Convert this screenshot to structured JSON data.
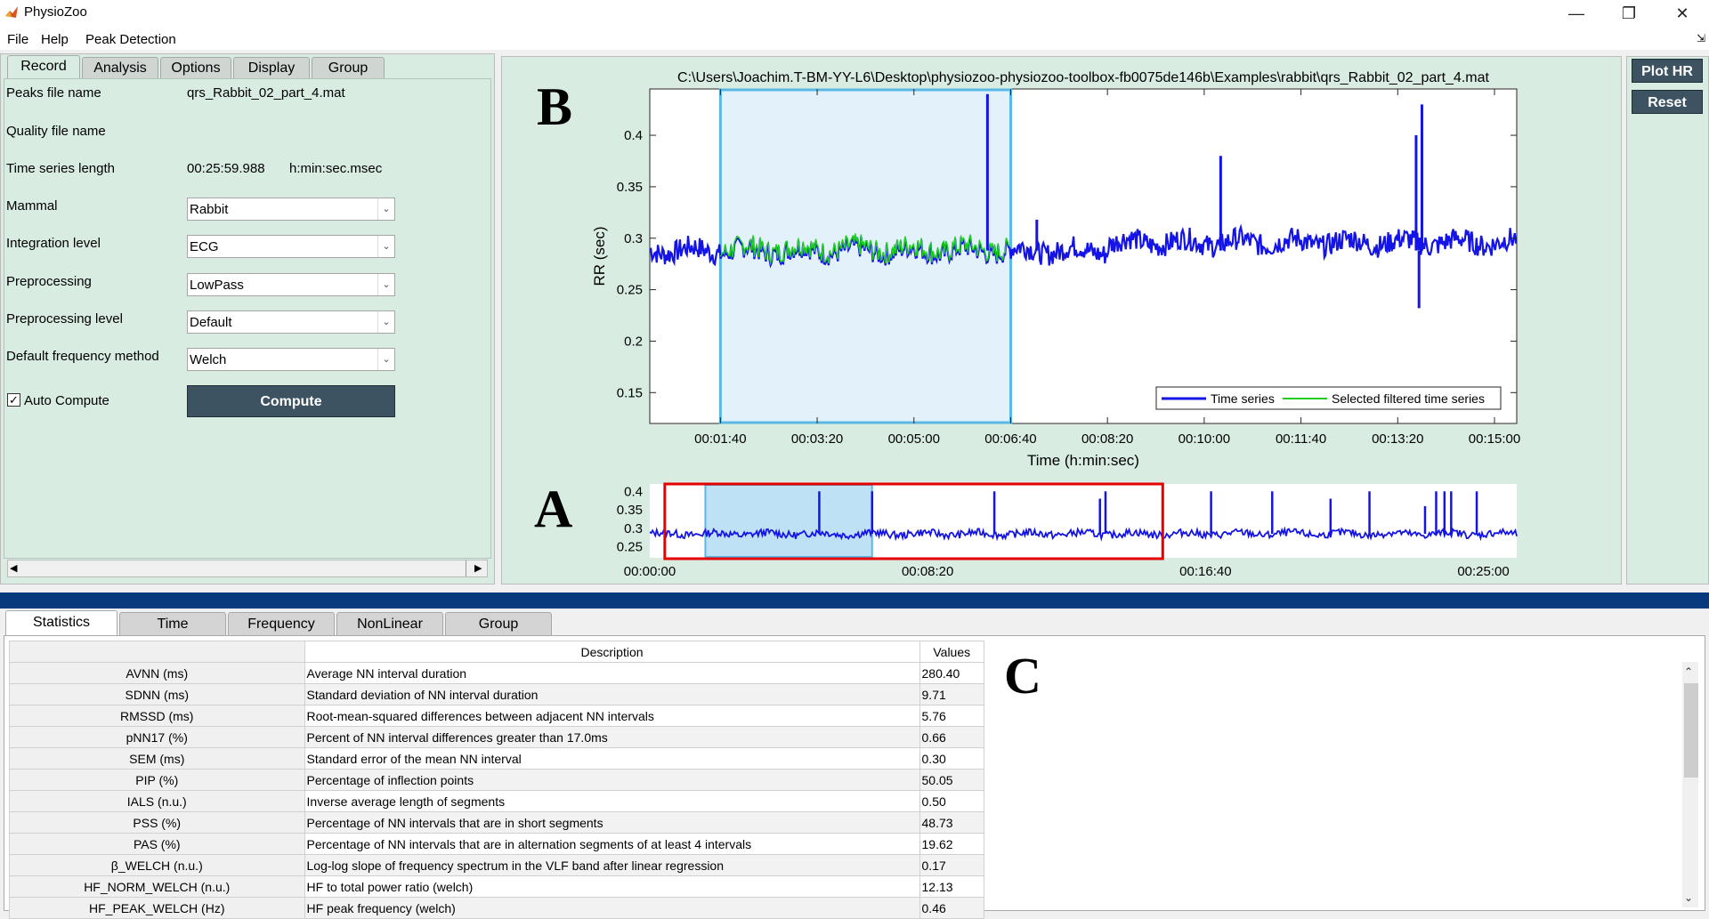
{
  "window": {
    "title": "PhysioZoo",
    "menu": [
      "File",
      "Help",
      "Peak Detection"
    ]
  },
  "left_tabs": [
    "Record",
    "Analysis",
    "Options",
    "Display",
    "Group"
  ],
  "record": {
    "rows": [
      {
        "label": "Peaks file name",
        "value": "qrs_Rabbit_02_part_4.mat"
      },
      {
        "label": "Quality file name",
        "value": ""
      },
      {
        "label": "Time series length",
        "value": "00:25:59.988",
        "unit": "h:min:sec.msec"
      }
    ],
    "combos": [
      {
        "label": "Mammal",
        "value": "Rabbit"
      },
      {
        "label": "Integration level",
        "value": "ECG"
      },
      {
        "label": "Preprocessing",
        "value": "LowPass"
      },
      {
        "label": "Preprocessing level",
        "value": "Default"
      },
      {
        "label": "Default frequency method",
        "value": "Welch"
      }
    ],
    "auto_compute_label": "Auto Compute",
    "auto_compute_checked": true,
    "compute_label": "Compute"
  },
  "side_buttons": {
    "plot_hr": "Plot HR",
    "reset": "Reset"
  },
  "panel_letters": {
    "a": "A",
    "b": "B",
    "c": "C"
  },
  "bottom_tabs": [
    "Statistics",
    "Time",
    "Frequency",
    "NonLinear",
    "Group"
  ],
  "stats": {
    "headers": {
      "description": "Description",
      "values": "Values"
    },
    "rows": [
      {
        "name": "AVNN (ms)",
        "description": "Average NN interval duration",
        "value": "280.40"
      },
      {
        "name": "SDNN (ms)",
        "description": "Standard deviation of NN interval duration",
        "value": "9.71"
      },
      {
        "name": "RMSSD (ms)",
        "description": "Root-mean-squared differences between adjacent NN intervals",
        "value": "5.76"
      },
      {
        "name": "pNN17 (%)",
        "description": "Percent of NN interval differences greater than 17.0ms",
        "value": "0.66"
      },
      {
        "name": "SEM (ms)",
        "description": "Standard error of the mean NN interval",
        "value": "0.30"
      },
      {
        "name": "PIP (%)",
        "description": "Percentage of inflection points",
        "value": "50.05"
      },
      {
        "name": "IALS (n.u.)",
        "description": "Inverse average length of segments",
        "value": "0.50"
      },
      {
        "name": "PSS (%)",
        "description": "Percentage of NN intervals that are in short segments",
        "value": "48.73"
      },
      {
        "name": "PAS (%)",
        "description": "Percentage of NN intervals that are in alternation segments of at least 4 intervals",
        "value": "19.62"
      },
      {
        "name": "β_WELCH (n.u.)",
        "description": "Log-log slope of frequency spectrum in the VLF band after linear regression",
        "value": "0.17"
      },
      {
        "name": "HF_NORM_WELCH (n.u.)",
        "description": "HF to total power ratio (welch)",
        "value": "12.13"
      },
      {
        "name": "HF_PEAK_WELCH (Hz)",
        "description": "HF peak frequency (welch)",
        "value": "0.46"
      }
    ]
  },
  "chart_data": [
    {
      "type": "line",
      "title": "C:\\Users\\Joachim.T-BM-YY-L6\\Desktop\\physiozoo-physiozoo-toolbox-fb0075de146b\\Examples\\rabbit\\qrs_Rabbit_02_part_4.mat",
      "xlabel": "Time (h:min:sec)",
      "ylabel": "RR (sec)",
      "xticks": [
        "00:01:40",
        "00:03:20",
        "00:05:00",
        "00:06:40",
        "00:08:20",
        "00:10:00",
        "00:11:40",
        "00:13:20",
        "00:15:00"
      ],
      "xticks_sec": [
        100,
        200,
        300,
        400,
        500,
        600,
        700,
        800,
        900
      ],
      "xlim_sec": [
        27,
        923
      ],
      "yticks": [
        0.15,
        0.2,
        0.25,
        0.3,
        0.35,
        0.4
      ],
      "ylim": [
        0.12,
        0.445
      ],
      "selection_window_sec": [
        100,
        400
      ],
      "legend": [
        "Time series",
        "Selected filtered time series"
      ],
      "legend_position": "bottom-right",
      "series_colors": {
        "time_series": "#1414e6",
        "filtered": "#20d020",
        "selection": "#5ab8e6"
      },
      "baseline": 0.288,
      "spikes_sec": [
        [
          376,
          0.44
        ],
        [
          427,
          0.318
        ],
        [
          617,
          0.38
        ],
        [
          819,
          0.4
        ],
        [
          825,
          0.43
        ],
        [
          822,
          0.232
        ]
      ]
    },
    {
      "type": "line",
      "xticks": [
        "00:00:00",
        "00:08:20",
        "00:16:40",
        "00:25:00"
      ],
      "xticks_sec": [
        0,
        500,
        1000,
        1500
      ],
      "xlim_sec": [
        0,
        1560
      ],
      "yticks": [
        0.25,
        0.3,
        0.35,
        0.4
      ],
      "ylim": [
        0.22,
        0.42
      ],
      "zoom_window_sec": [
        27,
        923
      ],
      "selection_window_sec": [
        100,
        400
      ],
      "series_color": "#1414e6",
      "zoom_color": "#e60000",
      "baseline": 0.285,
      "spikes_sec": [
        [
          305,
          0.4
        ],
        [
          400,
          0.4
        ],
        [
          620,
          0.4
        ],
        [
          810,
          0.38
        ],
        [
          820,
          0.4
        ],
        [
          1010,
          0.4
        ],
        [
          1120,
          0.4
        ],
        [
          1225,
          0.38
        ],
        [
          1295,
          0.4
        ],
        [
          1395,
          0.36
        ],
        [
          1415,
          0.4
        ],
        [
          1430,
          0.4
        ],
        [
          1442,
          0.4
        ],
        [
          1488,
          0.4
        ]
      ]
    }
  ]
}
